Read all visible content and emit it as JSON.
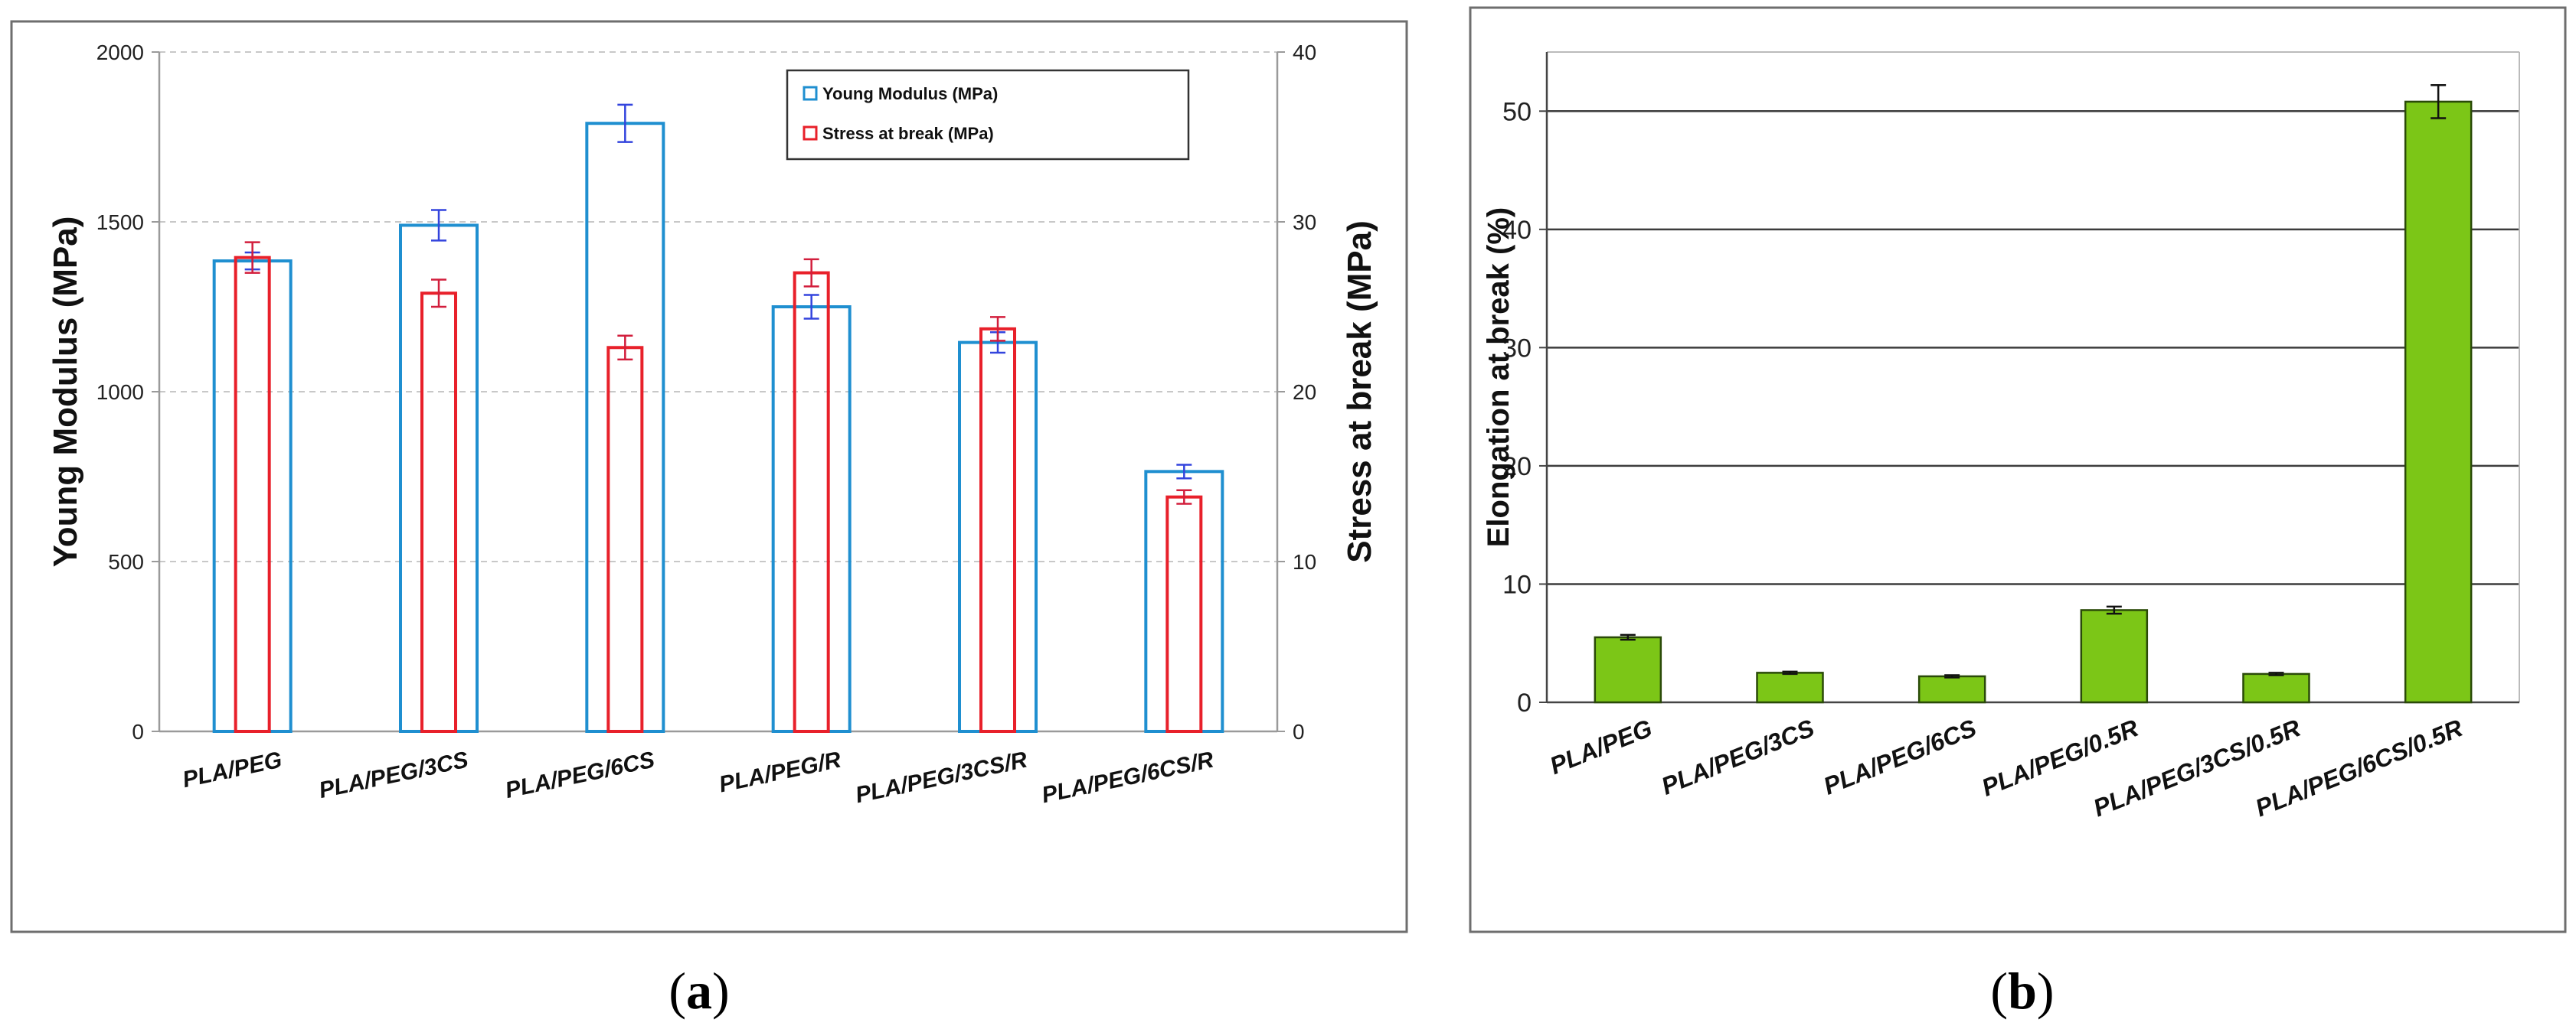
{
  "chart_data": [
    {
      "panel_label": "(a)",
      "panel_label_parts": [
        "(",
        "a",
        ")"
      ],
      "type": "bar",
      "title": "",
      "categories": [
        "PLA/PEG",
        "PLA/PEG/3CS",
        "PLA/PEG/6CS",
        "PLA/PEG/R",
        "PLA/PEG/3CS/R",
        "PLA/PEG/6CS/R"
      ],
      "series": [
        {
          "name": "Young Modulus (MPa)",
          "axis": "left",
          "color": "#1f8fd0",
          "error_color": "#3344dd",
          "values": [
            1385,
            1490,
            1790,
            1250,
            1145,
            765
          ],
          "errors": [
            25,
            45,
            55,
            35,
            30,
            20
          ]
        },
        {
          "name": "Stress at break (MPa)",
          "axis": "right",
          "color": "#e8202a",
          "error_color": "#d21e3c",
          "values": [
            27.9,
            25.8,
            22.6,
            27.0,
            23.7,
            13.8
          ],
          "errors": [
            0.9,
            0.8,
            0.7,
            0.8,
            0.7,
            0.4
          ]
        }
      ],
      "ylabel_left": "Young Modulus (MPa)",
      "ylabel_right": "Stress at break (MPa)",
      "ylim_left": [
        0,
        2000
      ],
      "yticks_left": [
        0,
        500,
        1000,
        1500,
        2000
      ],
      "ylim_right": [
        0,
        40
      ],
      "yticks_right": [
        0,
        10,
        20,
        30,
        40
      ],
      "grid": true,
      "legend_position": "top-right",
      "legend": [
        "Young Modulus (MPa)",
        "Stress at break (MPa)"
      ]
    },
    {
      "panel_label": "(b)",
      "panel_label_parts": [
        "(",
        "b",
        ")"
      ],
      "type": "bar",
      "title": "",
      "categories": [
        "PLA/PEG",
        "PLA/PEG/3CS",
        "PLA/PEG/6CS",
        "PLA/PEG/0.5R",
        "PLA/PEG/3CS/0.5R",
        "PLA/PEG/6CS/0.5R"
      ],
      "series": [
        {
          "name": "Elongation at break (%)",
          "color": "#7cc617",
          "values": [
            5.5,
            2.5,
            2.2,
            7.8,
            2.4,
            50.8
          ],
          "errors": [
            0.2,
            0.1,
            0.1,
            0.3,
            0.1,
            1.4
          ]
        }
      ],
      "ylabel": "Elongation at break (%)",
      "ylim": [
        0,
        55
      ],
      "yticks": [
        0,
        10,
        20,
        30,
        40,
        50
      ],
      "grid": true
    }
  ]
}
